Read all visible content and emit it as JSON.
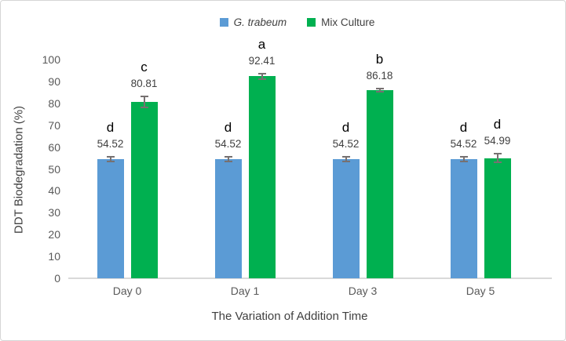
{
  "chart_data": {
    "type": "bar",
    "categories": [
      "Day 0",
      "Day 1",
      "Day 3",
      "Day 5"
    ],
    "series": [
      {
        "name": "G. trabeum",
        "italic": true,
        "color": "#5B9BD5",
        "values": [
          54.52,
          54.52,
          54.52,
          54.52
        ],
        "value_labels": [
          "54.52",
          "54.52",
          "54.52",
          "54.52"
        ],
        "errors": [
          1.2,
          1.2,
          1.2,
          1.2
        ],
        "letters": [
          "d",
          "d",
          "d",
          "d"
        ]
      },
      {
        "name": "Mix Culture",
        "italic": false,
        "color": "#00B050",
        "values": [
          80.81,
          92.41,
          86.18,
          54.99
        ],
        "value_labels": [
          "80.81",
          "92.41",
          "86.18",
          "54.99"
        ],
        "errors": [
          2.5,
          1.2,
          0.7,
          2.0
        ],
        "letters": [
          "c",
          "a",
          "b",
          "d"
        ]
      }
    ],
    "title": "",
    "xlabel": "The Variation of Addition Time",
    "ylabel": "DDT Biodegradation (%)",
    "ylim": [
      0,
      100
    ],
    "ytick_step": 10,
    "grid": false,
    "legend_position": "top",
    "colors": {
      "error_bar": "#767171",
      "axis_line": "#d9d9d9",
      "tick_text": "#595959",
      "label_text": "#404040",
      "letter_text": "#000000",
      "border": "#d6d6d6"
    }
  }
}
